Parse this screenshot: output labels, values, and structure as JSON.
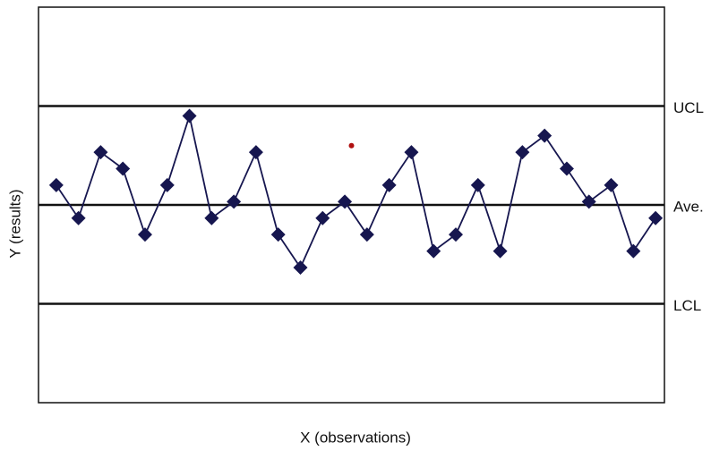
{
  "chart_data": {
    "type": "line",
    "x_label": "X (observations)",
    "y_label": "Y (results)",
    "x": [
      1,
      2,
      3,
      4,
      5,
      6,
      7,
      8,
      9,
      10,
      11,
      12,
      13,
      14,
      15,
      16,
      17,
      18,
      19,
      20,
      21,
      22,
      23,
      24,
      25,
      26,
      27,
      28
    ],
    "series": [
      {
        "color": "#16164f",
        "values": [
          0.6,
          -0.4,
          1.6,
          1.1,
          -0.9,
          0.6,
          2.7,
          -0.4,
          0.1,
          1.6,
          -0.9,
          -1.9,
          -0.4,
          0.1,
          -0.9,
          0.6,
          1.6,
          -1.4,
          -0.9,
          0.6,
          -1.4,
          1.6,
          2.1,
          1.1,
          0.1,
          0.6,
          -1.4,
          -0.4
        ]
      }
    ],
    "control_lines": [
      {
        "label": "UCL",
        "value": 3
      },
      {
        "label": "Ave.",
        "value": 0
      },
      {
        "label": "LCL",
        "value": -3
      }
    ],
    "stray_point": {
      "x": 14.3,
      "y": 1.8,
      "color": "#b01010"
    },
    "xlim": [
      0.2,
      28.4
    ],
    "ylim": [
      -6,
      6
    ]
  }
}
